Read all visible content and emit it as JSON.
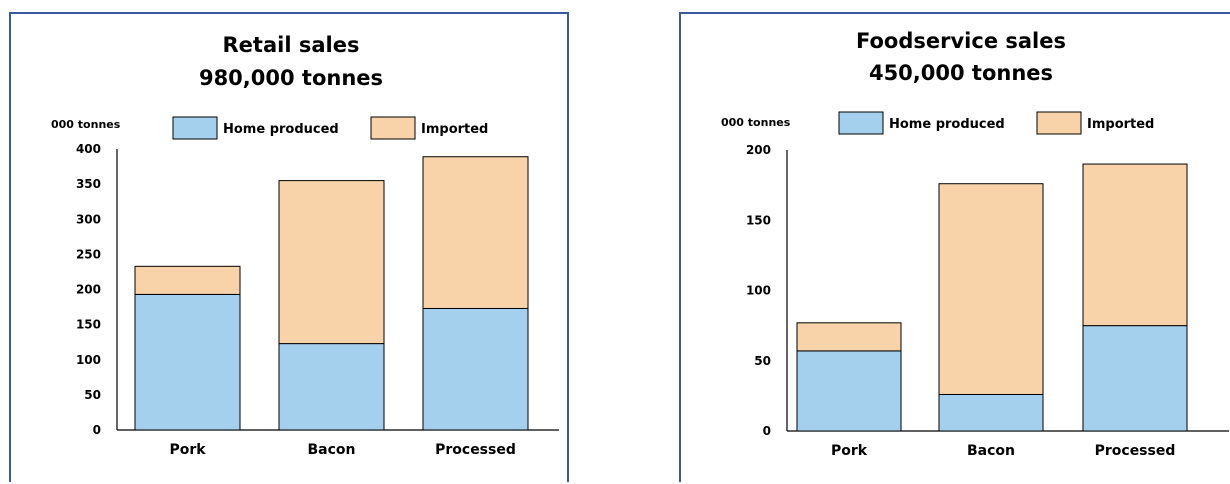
{
  "chart_data": [
    {
      "type": "bar",
      "stacked": true,
      "title_lines": [
        "Retail sales",
        "980,000 tonnes"
      ],
      "ylabel": "000 tonnes",
      "categories": [
        "Pork",
        "Bacon",
        "Processed"
      ],
      "ylim": [
        0,
        400
      ],
      "yticks": [
        0,
        50,
        100,
        150,
        200,
        250,
        300,
        350,
        400
      ],
      "legend_position": "top",
      "series": [
        {
          "name": "Home produced",
          "color": "#a4d0ee",
          "values": [
            193,
            123,
            173
          ]
        },
        {
          "name": "Imported",
          "color": "#f8d3aa",
          "values": [
            40,
            232,
            216
          ]
        }
      ]
    },
    {
      "type": "bar",
      "stacked": true,
      "title_lines": [
        "Foodservice sales",
        "450,000 tonnes"
      ],
      "ylabel": "000 tonnes",
      "categories": [
        "Pork",
        "Bacon",
        "Processed"
      ],
      "ylim": [
        0,
        200
      ],
      "yticks": [
        0,
        50,
        100,
        150,
        200
      ],
      "legend_position": "top",
      "series": [
        {
          "name": "Home produced",
          "color": "#a4d0ee",
          "values": [
            57,
            26,
            75
          ]
        },
        {
          "name": "Imported",
          "color": "#f8d3aa",
          "values": [
            20,
            150,
            115
          ]
        }
      ]
    }
  ]
}
